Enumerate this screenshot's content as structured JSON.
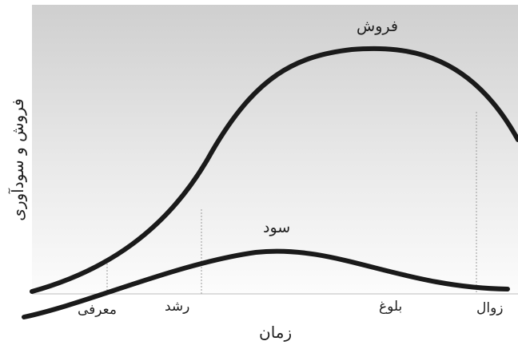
{
  "diagram": {
    "y_axis_label": "فروش و سودآوری",
    "x_axis_label": "زمان",
    "curves": {
      "sales_label": "فروش",
      "profit_label": "سود"
    },
    "stages": {
      "introduction": "معرفی",
      "growth": "رشد",
      "maturity": "بلوغ",
      "decline": "زوال"
    },
    "colors": {
      "curve": "#1a1a1a",
      "background_top": "#cfcfcf",
      "background_bottom": "#ffffff",
      "divider": "#9a9a9a"
    }
  }
}
